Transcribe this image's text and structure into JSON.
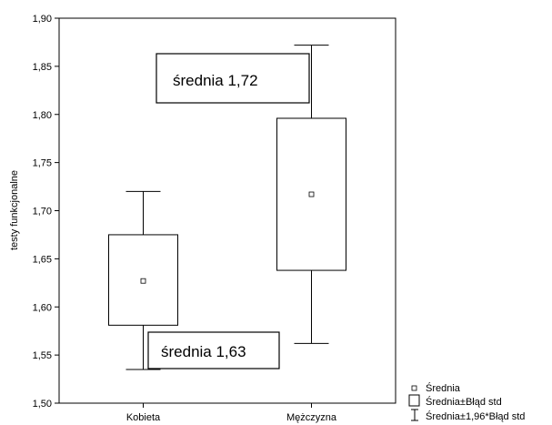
{
  "chart_data": {
    "type": "box",
    "ylabel": "testy funkcjonalne",
    "xlabel": "",
    "ylim": [
      1.5,
      1.9
    ],
    "yticks": [
      "1,50",
      "1,55",
      "1,60",
      "1,65",
      "1,70",
      "1,75",
      "1,80",
      "1,85",
      "1,90"
    ],
    "grid": false,
    "categories": [
      "Kobieta",
      "Mężczyzna"
    ],
    "groups": [
      {
        "category": "Kobieta",
        "mean": 1.627,
        "se_low": 1.581,
        "se_high": 1.675,
        "ci_low": 1.535,
        "ci_high": 1.72
      },
      {
        "category": "Mężczyzna",
        "mean": 1.717,
        "se_low": 1.638,
        "se_high": 1.796,
        "ci_low": 1.562,
        "ci_high": 1.872
      }
    ],
    "annotations": [
      {
        "text": "średnia  1,72"
      },
      {
        "text": "średnia 1,63"
      }
    ],
    "legend": {
      "placement": "bottom-right",
      "items": [
        "Średnia",
        "Średnia±Błąd std",
        "Średnia±1,96*Błąd std"
      ]
    }
  }
}
